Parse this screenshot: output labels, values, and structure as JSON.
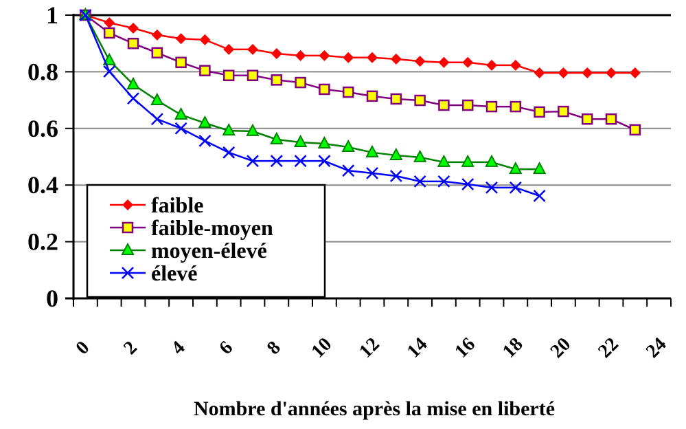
{
  "chart_data": {
    "type": "line",
    "title": "",
    "xlabel": "Nombre d'années après la mise en liberté",
    "ylabel": "",
    "ylim": [
      0,
      1
    ],
    "yticks": [
      "0",
      "0.2",
      "0.4",
      "0.6",
      "0.8",
      "1"
    ],
    "xticks": [
      "0",
      "2",
      "4",
      "6",
      "8",
      "10",
      "12",
      "14",
      "16",
      "18",
      "20",
      "22",
      "24"
    ],
    "grid": "horizontal",
    "legend_position": "inside-lower-left",
    "x": [
      0,
      1,
      2,
      3,
      4,
      5,
      6,
      7,
      8,
      9,
      10,
      11,
      12,
      13,
      14,
      15,
      16,
      17,
      18,
      19,
      20,
      21,
      22,
      23
    ],
    "series": [
      {
        "name": "faible",
        "color": "#ff0000",
        "marker": "diamond",
        "values": [
          1.0,
          0.973,
          0.954,
          0.93,
          0.917,
          0.913,
          0.879,
          0.879,
          0.864,
          0.857,
          0.857,
          0.85,
          0.85,
          0.845,
          0.837,
          0.833,
          0.833,
          0.823,
          0.823,
          0.796,
          0.796,
          0.796,
          0.796,
          0.796
        ]
      },
      {
        "name": "faible-moyen",
        "color": "#800080",
        "marker": "square",
        "marker_fill": "#ffff00",
        "values": [
          1.0,
          0.937,
          0.9,
          0.867,
          0.833,
          0.804,
          0.787,
          0.787,
          0.771,
          0.762,
          0.738,
          0.728,
          0.714,
          0.704,
          0.699,
          0.682,
          0.682,
          0.677,
          0.677,
          0.658,
          0.66,
          0.633,
          0.633,
          0.595
        ]
      },
      {
        "name": "moyen-élevé",
        "color": "#008000",
        "marker": "triangle",
        "marker_fill": "#00ff00",
        "values": [
          1.0,
          0.84,
          0.755,
          0.699,
          0.648,
          0.619,
          0.592,
          0.59,
          0.561,
          0.551,
          0.546,
          0.534,
          0.515,
          0.505,
          0.498,
          0.481,
          0.481,
          0.481,
          0.456,
          0.456
        ]
      },
      {
        "name": "élevé",
        "color": "#0000ff",
        "marker": "x",
        "values": [
          1.0,
          0.801,
          0.706,
          0.633,
          0.6,
          0.556,
          0.515,
          0.485,
          0.485,
          0.485,
          0.485,
          0.451,
          0.442,
          0.432,
          0.413,
          0.413,
          0.403,
          0.391,
          0.391,
          0.362
        ]
      }
    ]
  }
}
